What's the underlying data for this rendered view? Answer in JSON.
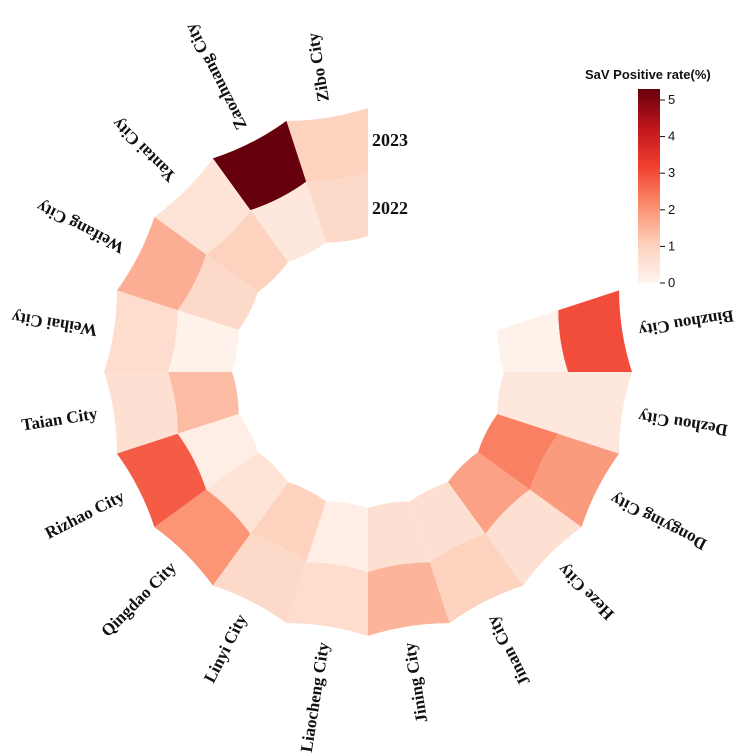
{
  "chart_data": {
    "type": "heatmap",
    "subtype": "circular",
    "categories": [
      "Zibo City",
      "Zaozhuang City",
      "Yantai City",
      "Weifang City",
      "Weihai City",
      "Taian City",
      "Rizhao City",
      "Qingdao City",
      "Linyi City",
      "Liaocheng City",
      "Jining City",
      "Jinan City",
      "Heze City",
      "Dongying City",
      "Dezhou City",
      "Binzhou City"
    ],
    "rings": [
      "2023",
      "2022"
    ],
    "series": [
      {
        "name": "2023",
        "values": [
          1.0,
          5.3,
          0.5,
          1.6,
          0.7,
          0.6,
          2.8,
          2.0,
          0.8,
          0.7,
          1.5,
          1.0,
          0.6,
          1.9,
          0.4,
          3.0
        ]
      },
      {
        "name": "2022",
        "values": [
          0.8,
          0.4,
          1.0,
          0.8,
          0.1,
          1.4,
          0.2,
          0.5,
          1.0,
          0.2,
          0.6,
          0.6,
          1.8,
          2.3,
          0.4,
          0.1
        ]
      }
    ],
    "colorbar": {
      "title": "SaV Positive rate(%)",
      "min": 0,
      "max": 5.3,
      "ticks": [
        "0",
        "1",
        "2",
        "3",
        "4",
        "5"
      ],
      "colors": [
        "#fff5f0",
        "#fdd0bc",
        "#fb8d6d",
        "#f0402f",
        "#c0161c",
        "#67000d"
      ]
    }
  }
}
